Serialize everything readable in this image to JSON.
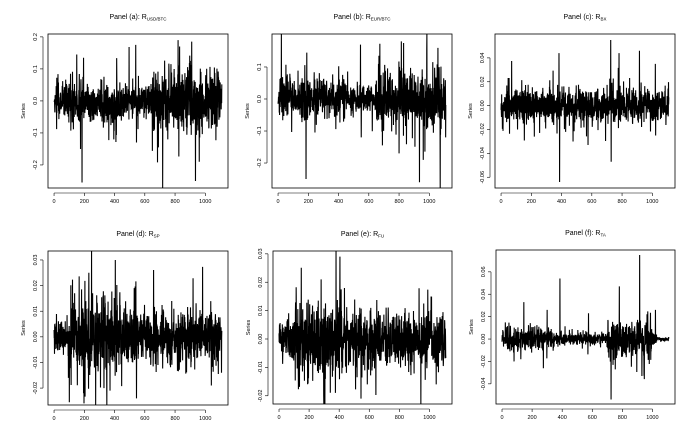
{
  "chart_data": [
    {
      "type": "line",
      "id": "a",
      "title": "Panel (a):  R",
      "title_sub": "USD/BTC",
      "xlabel": "",
      "ylabel": "Series",
      "xlim": [
        -40,
        1150
      ],
      "ylim": [
        -0.272,
        0.209
      ],
      "xticks": [
        0,
        200,
        400,
        600,
        800,
        1000
      ],
      "yticks": [
        -0.2,
        -0.1,
        0.0,
        0.1,
        0.2
      ],
      "ytick_labels": [
        "-0.2",
        "-0.1",
        "0.0",
        "0.1",
        "0.2"
      ],
      "n": 1110,
      "seed": 11,
      "regimes": [
        [
          0,
          450,
          0.03
        ],
        [
          450,
          650,
          0.022
        ],
        [
          650,
          1110,
          0.045
        ]
      ],
      "spikes": [
        [
          150,
          0.145
        ],
        [
          175,
          -0.15
        ],
        [
          185,
          -0.255
        ],
        [
          195,
          0.135
        ],
        [
          395,
          -0.12
        ],
        [
          540,
          0.175
        ],
        [
          545,
          -0.13
        ],
        [
          690,
          -0.145
        ],
        [
          820,
          0.19
        ],
        [
          830,
          0.17
        ],
        [
          910,
          0.185
        ],
        [
          935,
          -0.25
        ],
        [
          960,
          -0.19
        ]
      ]
    },
    {
      "type": "line",
      "id": "b",
      "title": "Panel (b):  R",
      "title_sub": "EUR/BTC",
      "xlabel": "",
      "ylabel": "Series",
      "xlim": [
        -40,
        1150
      ],
      "ylim": [
        -0.278,
        0.203
      ],
      "xticks": [
        0,
        200,
        400,
        600,
        800,
        1000
      ],
      "yticks": [
        -0.2,
        -0.1,
        0.0,
        0.1
      ],
      "ytick_labels": [
        "-0.2",
        "-0.1",
        "0.0",
        "0.1"
      ],
      "n": 1110,
      "seed": 23,
      "regimes": [
        [
          0,
          450,
          0.03
        ],
        [
          450,
          650,
          0.022
        ],
        [
          650,
          1110,
          0.045
        ]
      ],
      "spikes": [
        [
          185,
          -0.25
        ],
        [
          190,
          0.145
        ],
        [
          545,
          0.17
        ],
        [
          550,
          -0.12
        ],
        [
          690,
          -0.145
        ],
        [
          800,
          -0.17
        ],
        [
          815,
          0.18
        ],
        [
          830,
          0.175
        ],
        [
          935,
          -0.26
        ],
        [
          960,
          -0.19
        ]
      ]
    },
    {
      "type": "line",
      "id": "c",
      "title": "Panel (c):  R",
      "title_sub": "BX",
      "xlabel": "",
      "ylabel": "Series",
      "xlim": [
        -40,
        1150
      ],
      "ylim": [
        -0.069,
        0.06
      ],
      "xticks": [
        0,
        200,
        400,
        600,
        800,
        1000
      ],
      "yticks": [
        -0.06,
        -0.04,
        -0.02,
        0.0,
        0.02,
        0.04
      ],
      "ytick_labels": [
        "-0.06",
        "-0.04",
        "-0.02",
        "0.00",
        "0.02",
        "0.04"
      ],
      "n": 1110,
      "seed": 37,
      "regimes": [
        [
          0,
          1110,
          0.007
        ]
      ],
      "spikes": [
        [
          220,
          -0.026
        ],
        [
          383,
          0.044
        ],
        [
          387,
          -0.064
        ],
        [
          575,
          -0.033
        ],
        [
          725,
          0.055
        ],
        [
          728,
          -0.047
        ],
        [
          780,
          0.044
        ],
        [
          915,
          0.046
        ],
        [
          1020,
          0.035
        ],
        [
          1022,
          -0.025
        ]
      ]
    },
    {
      "type": "line",
      "id": "d",
      "title": "Panel (d):  R",
      "title_sub": "SP",
      "xlabel": "",
      "ylabel": "Series",
      "xlim": [
        -40,
        1150
      ],
      "ylim": [
        -0.0266,
        0.0335
      ],
      "xticks": [
        0,
        200,
        400,
        600,
        800,
        1000
      ],
      "yticks": [
        -0.02,
        -0.01,
        0.0,
        0.01,
        0.02,
        0.03
      ],
      "ytick_labels": [
        "-0.02",
        "-0.01",
        "0.00",
        "0.01",
        "0.02",
        "0.03"
      ],
      "n": 1110,
      "seed": 41,
      "regimes": [
        [
          0,
          100,
          0.0035
        ],
        [
          100,
          450,
          0.0075
        ],
        [
          450,
          1110,
          0.005
        ]
      ],
      "spikes": [
        [
          95,
          -0.016
        ],
        [
          195,
          -0.022
        ],
        [
          230,
          0.025
        ],
        [
          370,
          -0.021
        ],
        [
          405,
          0.03
        ],
        [
          530,
          0.019
        ],
        [
          545,
          -0.024
        ],
        [
          1040,
          -0.019
        ]
      ]
    },
    {
      "type": "line",
      "id": "e",
      "title": "Panel (e):  R",
      "title_sub": "FU",
      "xlabel": "",
      "ylabel": "Series",
      "xlim": [
        -40,
        1150
      ],
      "ylim": [
        -0.0229,
        0.031
      ],
      "xticks": [
        0,
        200,
        400,
        600,
        800,
        1000
      ],
      "yticks": [
        -0.02,
        -0.01,
        0.0,
        0.01,
        0.02,
        0.03
      ],
      "ytick_labels": [
        "-0.02",
        "-0.01",
        "0.00",
        "0.01",
        "0.02",
        "0.03"
      ],
      "n": 1110,
      "seed": 53,
      "regimes": [
        [
          0,
          100,
          0.003
        ],
        [
          100,
          450,
          0.0068
        ],
        [
          450,
          1110,
          0.005
        ]
      ],
      "spikes": [
        [
          280,
          0.021
        ],
        [
          375,
          -0.019
        ],
        [
          405,
          0.029
        ],
        [
          545,
          -0.021
        ],
        [
          1045,
          -0.016
        ]
      ]
    },
    {
      "type": "line",
      "id": "f",
      "title": "Panel (f):  R",
      "title_sub": "TA",
      "xlabel": "",
      "ylabel": "Series",
      "xlim": [
        -40,
        1150
      ],
      "ylim": [
        -0.058,
        0.0795
      ],
      "xticks": [
        0,
        200,
        400,
        600,
        800,
        1000
      ],
      "yticks": [
        -0.04,
        -0.02,
        0.0,
        0.02,
        0.04,
        0.06
      ],
      "ytick_labels": [
        "-0.04",
        "-0.02",
        "0.00",
        "0.02",
        "0.04",
        "0.06"
      ],
      "n": 1110,
      "seed": 67,
      "regimes": [
        [
          0,
          350,
          0.005
        ],
        [
          350,
          700,
          0.0028
        ],
        [
          700,
          1000,
          0.008
        ],
        [
          1000,
          1030,
          0.003
        ],
        [
          1030,
          1110,
          0.0008
        ]
      ],
      "spikes": [
        [
          80,
          -0.02
        ],
        [
          145,
          0.033
        ],
        [
          300,
          0.026
        ],
        [
          385,
          0.054
        ],
        [
          575,
          0.023
        ],
        [
          725,
          -0.054
        ],
        [
          780,
          0.047
        ],
        [
          915,
          0.075
        ],
        [
          930,
          -0.033
        ],
        [
          1020,
          0.026
        ]
      ]
    }
  ]
}
